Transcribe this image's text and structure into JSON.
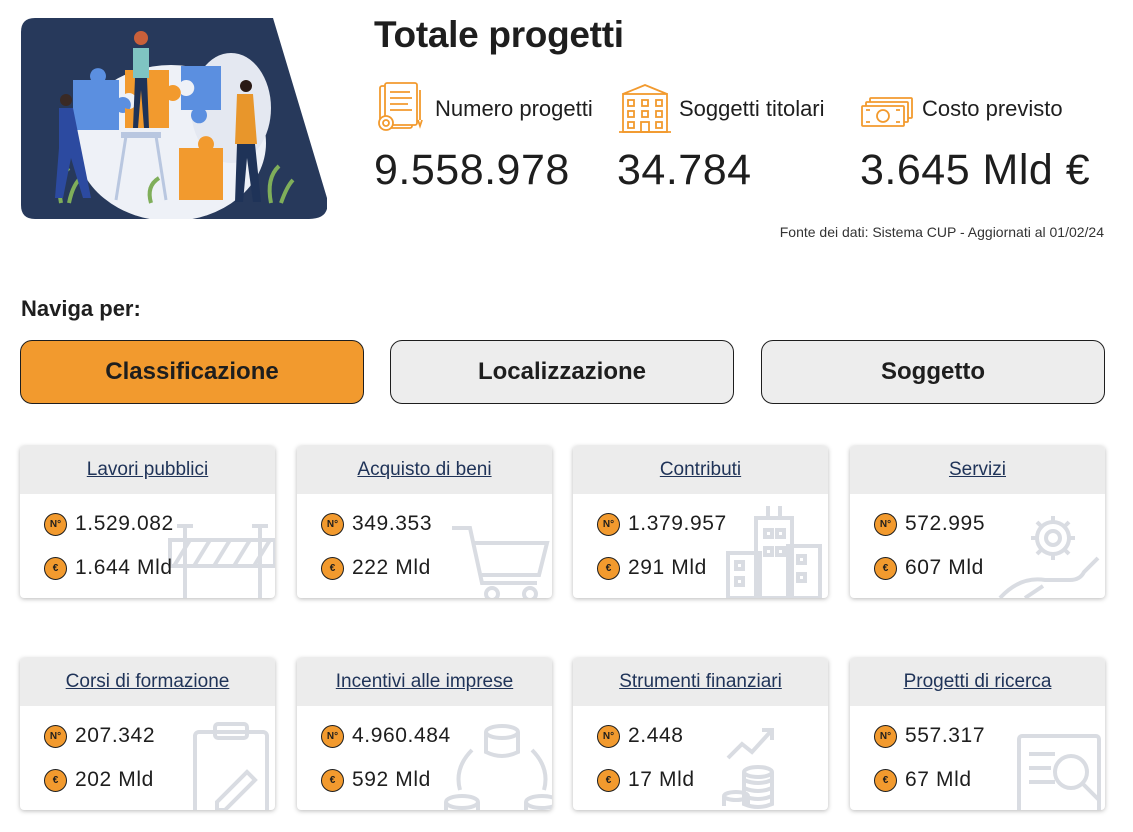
{
  "header": {
    "title": "Totale progetti",
    "source_note": "Fonte dei dati: Sistema CUP - Aggiornati al 01/02/24"
  },
  "kpis": [
    {
      "label": "Numero progetti",
      "value": "9.558.978",
      "icon": "document-gear-icon"
    },
    {
      "label": "Soggetti titolari",
      "value": "34.784",
      "icon": "building-icon"
    },
    {
      "label": "Costo previsto",
      "value": "3.645 Mld €",
      "icon": "banknotes-icon"
    }
  ],
  "nav": {
    "label": "Naviga per:",
    "tabs": [
      {
        "label": "Classificazione",
        "active": true
      },
      {
        "label": "Localizzazione",
        "active": false
      },
      {
        "label": "Soggetto",
        "active": false
      }
    ]
  },
  "badges": {
    "count": "N°",
    "amount": "€"
  },
  "cards": [
    {
      "title": "Lavori pubblici",
      "count": "1.529.082",
      "amount": "1.644 Mld",
      "icon": "roadblock-icon"
    },
    {
      "title": "Acquisto di beni",
      "count": "349.353",
      "amount": "222 Mld",
      "icon": "shopping-cart-icon"
    },
    {
      "title": "Contributi",
      "count": "1.379.957",
      "amount": "291 Mld",
      "icon": "buildings-icon"
    },
    {
      "title": "Servizi",
      "count": "572.995",
      "amount": "607 Mld",
      "icon": "gear-hand-icon"
    },
    {
      "title": "Corsi di formazione",
      "count": "207.342",
      "amount": "202 Mld",
      "icon": "clipboard-pencil-icon"
    },
    {
      "title": "Incentivi alle imprese",
      "count": "4.960.484",
      "amount": "592 Mld",
      "icon": "coin-stacks-cycle-icon"
    },
    {
      "title": "Strumenti finanziari",
      "count": "2.448",
      "amount": "17 Mld",
      "icon": "coins-growth-icon"
    },
    {
      "title": "Progetti di ricerca",
      "count": "557.317",
      "amount": "67 Mld",
      "icon": "document-magnifier-icon"
    }
  ],
  "colors": {
    "accent": "#f29a2e",
    "navy": "#1f3358",
    "tab_inactive": "#ededed",
    "card_header": "#ececec"
  }
}
